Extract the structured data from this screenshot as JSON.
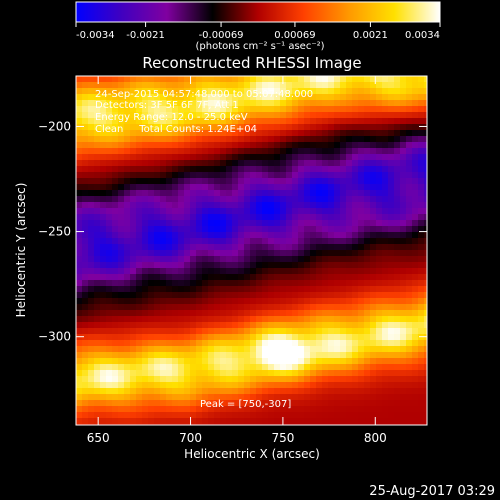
{
  "colorbar": {
    "ticks": [
      -0.0034,
      -0.0021,
      -0.00069,
      0.00069,
      0.0021,
      0.0034
    ],
    "tick_labels": [
      "-0.0034",
      "-0.0021",
      "-0.00069",
      "0.00069",
      "0.0021",
      "0.0034"
    ],
    "unit_label": "(photons cm⁻² s⁻¹ asec⁻²)",
    "colors": [
      "#0000ff",
      "#4000c0",
      "#8000a0",
      "#000000",
      "#b00000",
      "#ff4000",
      "#ff9900",
      "#ffe000",
      "#ffffff"
    ]
  },
  "title": "Reconstructed RHESSI Image",
  "annotations": {
    "time_range": "24-Sep-2015 04:57:48.000 to 05:07:48.000",
    "detectors": "Detectors: 3F 5F 6F 7F, Att 1",
    "energy_range": "Energy Range: 12.0 - 25.0 keV",
    "method_counts": "Clean     Total Counts: 1.24E+04",
    "peak": "Peak = [750,-307]"
  },
  "footer_date": "25-Aug-2017 03:29",
  "chart_data": {
    "type": "heatmap",
    "title": "Reconstructed RHESSI Image",
    "xlabel": "Heliocentric X (arcsec)",
    "ylabel": "Heliocentric Y (arcsec)",
    "xlim": [
      638,
      828
    ],
    "ylim": [
      -342,
      -176
    ],
    "x_ticks": [
      650,
      700,
      750,
      800
    ],
    "y_ticks": [
      -200,
      -250,
      -300
    ],
    "color_range": [
      -0.0034,
      0.0034
    ],
    "peak": [
      750,
      -307
    ],
    "features": [
      {
        "name": "upper bright band",
        "center_line": [
          [
            638,
            -196
          ],
          [
            700,
            -190
          ],
          [
            780,
            -176
          ],
          [
            828,
            -176
          ]
        ],
        "level": 0.0034
      },
      {
        "name": "negative trough",
        "center_line": [
          [
            638,
            -258
          ],
          [
            700,
            -248
          ],
          [
            780,
            -232
          ],
          [
            828,
            -225
          ]
        ],
        "level": -0.0034
      },
      {
        "name": "lower bright band",
        "center_line": [
          [
            638,
            -320
          ],
          [
            700,
            -316
          ],
          [
            750,
            -307
          ],
          [
            828,
            -295
          ]
        ],
        "level": 0.0034
      }
    ]
  }
}
